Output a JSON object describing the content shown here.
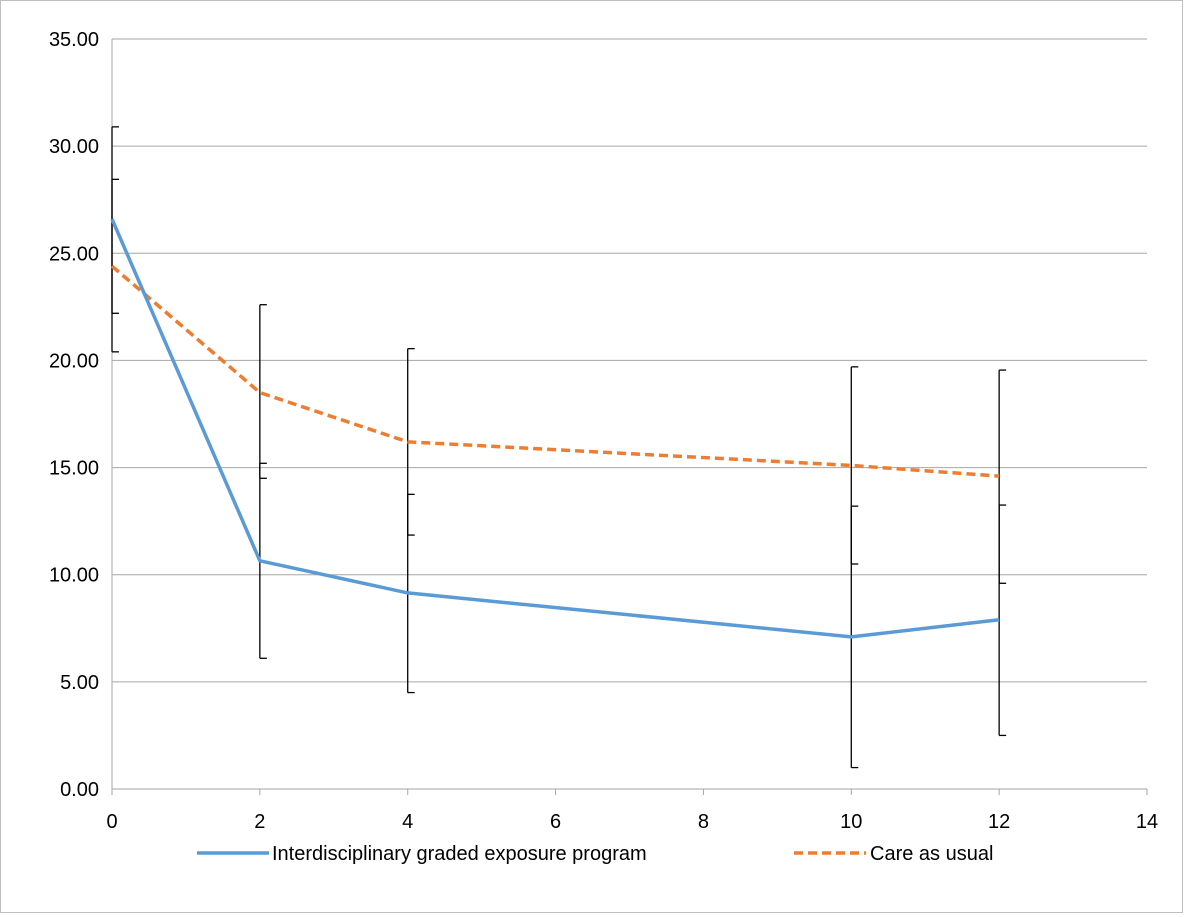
{
  "chart_data": {
    "type": "line",
    "title": "",
    "xlabel": "",
    "ylabel": "",
    "xlim": [
      0,
      14
    ],
    "ylim": [
      0,
      35
    ],
    "x_ticks": [
      "0",
      "2",
      "4",
      "6",
      "8",
      "10",
      "12",
      "14"
    ],
    "y_ticks": [
      "0.00",
      "5.00",
      "10.00",
      "15.00",
      "20.00",
      "25.00",
      "30.00",
      "35.00"
    ],
    "grid": "horizontal",
    "legend_position": "bottom",
    "x": [
      0,
      2,
      4,
      10,
      12
    ],
    "series": [
      {
        "name": "Interdisciplinary graded exposure program",
        "color": "#5b9bd5",
        "dash": "solid",
        "values": [
          26.6,
          10.65,
          9.15,
          7.1,
          7.9
        ],
        "error_low": [
          22.2,
          6.1,
          4.5,
          1.0,
          2.5
        ],
        "error_high": [
          30.9,
          15.2,
          13.75,
          13.2,
          13.25
        ]
      },
      {
        "name": "Care as usual",
        "color": "#ed7d31",
        "dash": "dashed",
        "values": [
          24.4,
          18.5,
          16.2,
          15.1,
          14.6
        ],
        "error_low": [
          20.4,
          14.5,
          11.85,
          10.5,
          9.6
        ],
        "error_high": [
          28.45,
          22.6,
          20.55,
          19.7,
          19.55
        ]
      }
    ]
  }
}
